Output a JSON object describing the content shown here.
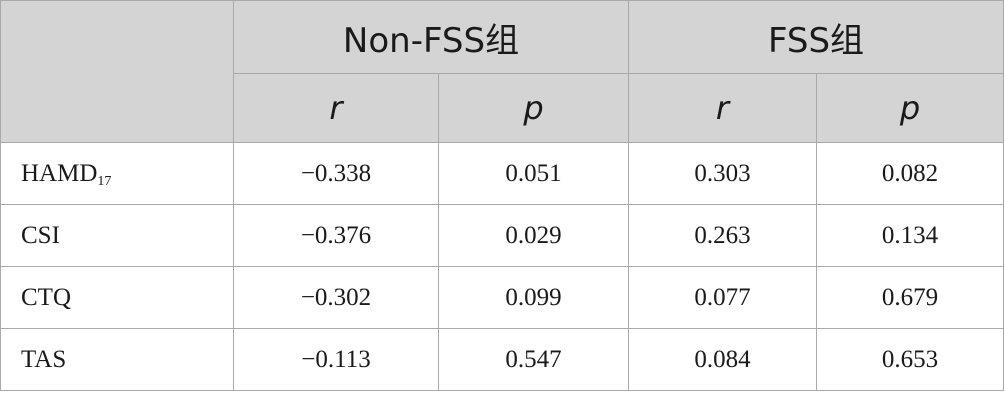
{
  "table": {
    "group_headers": [
      "Non-FSS组",
      "FSS组"
    ],
    "sub_headers": [
      "r",
      "p",
      "r",
      "p"
    ],
    "rows": [
      {
        "label": "HAMD",
        "label_sub": "17",
        "values": [
          "−0.338",
          "0.051",
          "0.303",
          "0.082"
        ]
      },
      {
        "label": "CSI",
        "label_sub": "",
        "values": [
          "−0.376",
          "0.029",
          "0.263",
          "0.134"
        ]
      },
      {
        "label": "CTQ",
        "label_sub": "",
        "values": [
          "−0.302",
          "0.099",
          "0.077",
          "0.679"
        ]
      },
      {
        "label": "TAS",
        "label_sub": "",
        "values": [
          "−0.113",
          "0.547",
          "0.084",
          "0.653"
        ]
      }
    ]
  },
  "colors": {
    "header_bg": "#d4d4d4",
    "border": "#a9a9a9",
    "text": "#1a1a1a"
  }
}
